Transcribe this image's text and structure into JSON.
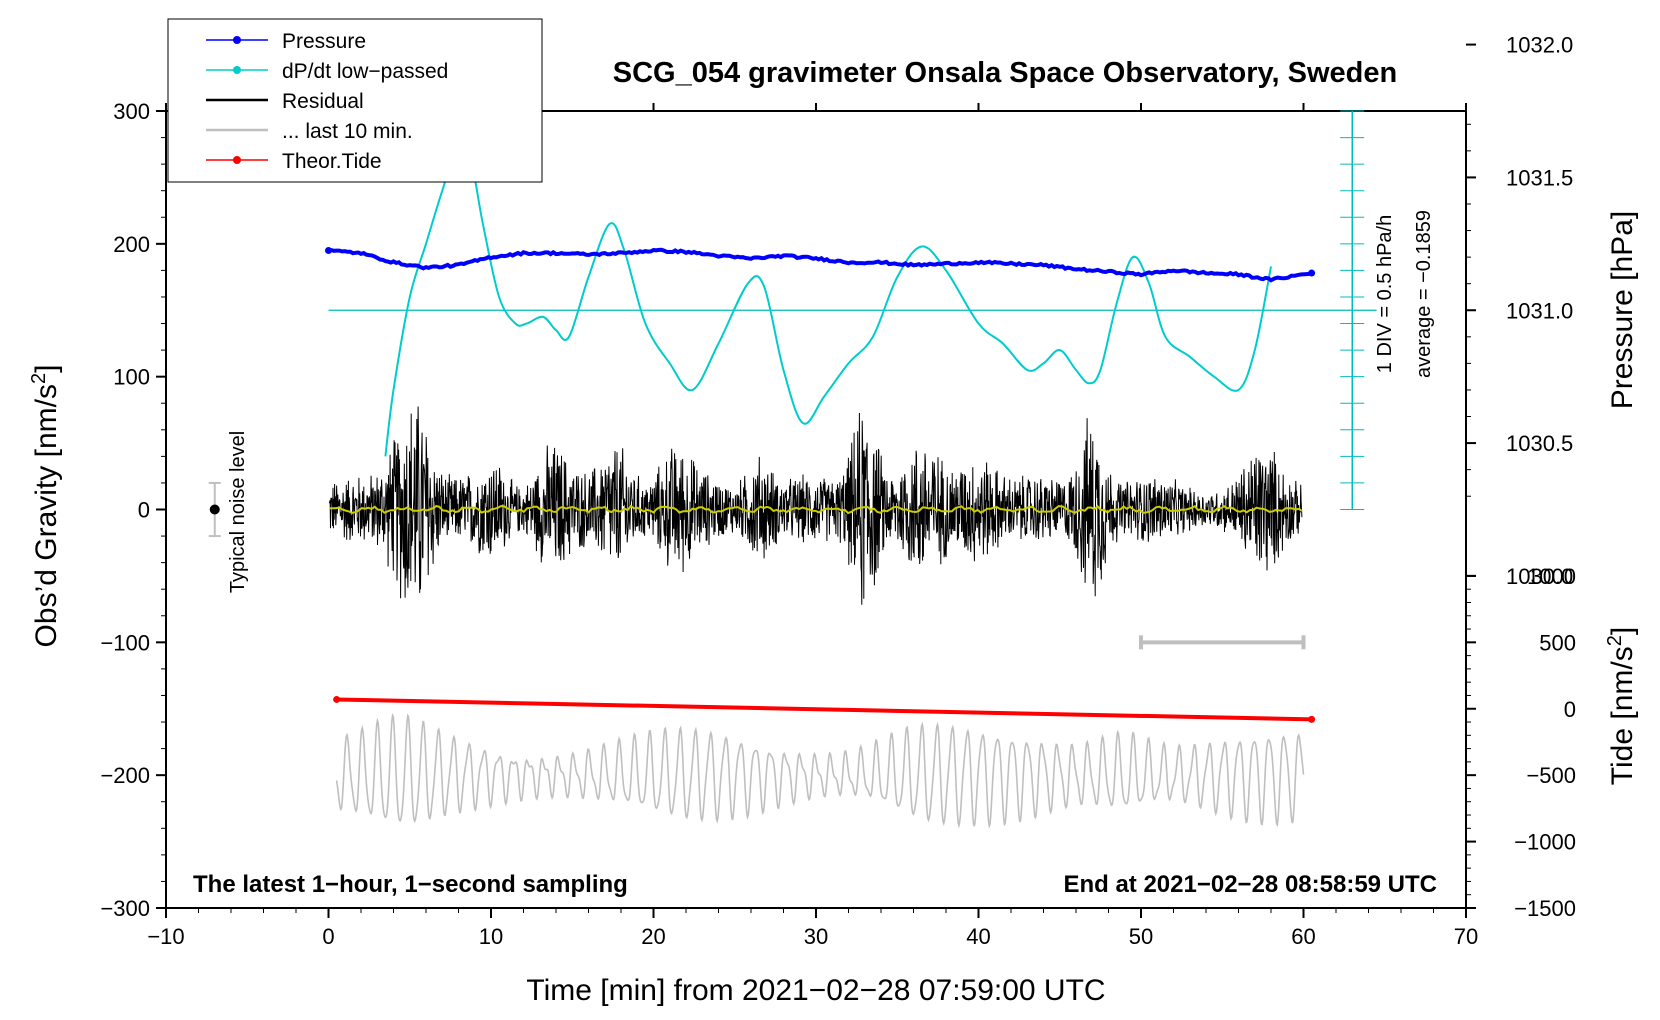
{
  "chart_data": {
    "type": "line",
    "title": "SCG_054 gravimeter Onsala Space Observatory, Sweden",
    "xlabel": "Time [min] from 2021−02−28 07:59:00 UTC",
    "ylabel_left": "Obs’d Gravity [nm/s",
    "ylabel_left_sup": "2",
    "ylabel_left_close": "]",
    "ylabel_right_pressure": "Pressure [hPa]",
    "ylabel_right_tide": "Tide [nm/s",
    "ylabel_right_tide_sup": "2",
    "ylabel_right_tide_close": "]",
    "xlim": [
      -10,
      70
    ],
    "ylim": [
      -300,
      300
    ],
    "x_ticks": [
      "−10",
      "0",
      "10",
      "20",
      "30",
      "40",
      "50",
      "60",
      "70"
    ],
    "x_tick_values": [
      -10,
      0,
      10,
      20,
      30,
      40,
      50,
      60,
      70
    ],
    "y_ticks": [
      "300",
      "200",
      "100",
      "0",
      "−100",
      "−200",
      "−300"
    ],
    "y_tick_values": [
      300,
      200,
      100,
      0,
      -100,
      -200,
      -300
    ],
    "pressure_ticks": [
      "1032.0",
      "1031.5",
      "1031.0",
      "1030.5",
      "1030.0"
    ],
    "pressure_tick_values": [
      1032.0,
      1031.5,
      1031.0,
      1030.5,
      1030.0
    ],
    "pressure_mapping": {
      "hpa_at_gravity_150": 1031.0,
      "gravity_per_hpa": 200
    },
    "tide_ticks": [
      "1000",
      "500",
      "0",
      "−500",
      "−1000",
      "−1500"
    ],
    "tide_tick_values": [
      1000,
      500,
      0,
      -500,
      -1000,
      -1500
    ],
    "tide_mapping": {
      "tide_at_gravity_minus150": 0,
      "gravity_per_tide_unit": 0.1
    },
    "annotation_left": "The latest 1−hour, 1−second sampling",
    "annotation_right": "End at 2021−02−28 08:58:59 UTC",
    "noise_label": "Typical noise level",
    "noise_bar": {
      "x": -7,
      "center": 0,
      "halfwidth": 20
    },
    "dpdt_scale_label": "1 DIV = 0.5 hPa/h",
    "dpdt_average_label": "average = −0.1859",
    "dpdt_axis": {
      "x": 63,
      "ymin": 0,
      "ymax": 300,
      "baseline": 150,
      "divisions": 15
    },
    "gray_range_bar": {
      "x_start": 50,
      "x_end": 60,
      "y": -100
    },
    "legend": [
      {
        "label": "Pressure",
        "color": "#0000ff",
        "marker": true
      },
      {
        "label": "dP/dt low−passed",
        "color": "#00cccc",
        "marker": true
      },
      {
        "label": "Residual",
        "color": "#000000",
        "marker": false
      },
      {
        "label": "... last 10 min.",
        "color": "#bfbfbf",
        "marker": false
      },
      {
        "label": "Theor.Tide",
        "color": "#ff0000",
        "marker": true
      }
    ],
    "series": [
      {
        "name": "Pressure",
        "color": "#0000ff",
        "x": [
          0,
          2,
          4,
          6,
          8,
          10,
          12,
          14,
          16,
          18,
          20,
          22,
          24,
          26,
          28,
          30,
          32,
          34,
          36,
          38,
          40,
          42,
          44,
          46,
          48,
          50,
          52,
          54,
          56,
          58,
          60.5
        ],
        "values": [
          195,
          193,
          186,
          182,
          184,
          190,
          193,
          193,
          192,
          193,
          195,
          194,
          191,
          189,
          191,
          189,
          186,
          186,
          184,
          185,
          186,
          185,
          184,
          181,
          179,
          177,
          180,
          178,
          177,
          173,
          178
        ]
      },
      {
        "name": "dP/dt low-passed",
        "color": "#00cccc",
        "x": [
          3.5,
          4,
          5,
          6,
          7,
          8,
          8.8,
          9.5,
          10.5,
          11.5,
          12.2,
          13.2,
          14,
          14.8,
          16,
          17.3,
          18.2,
          19.5,
          21,
          22.4,
          24,
          25.8,
          26.8,
          28,
          29.2,
          30.5,
          32,
          33.5,
          35,
          36.5,
          38,
          40,
          41.5,
          43,
          44,
          45,
          46,
          46.8,
          47.5,
          48.5,
          49.5,
          50.5,
          51.5,
          53,
          54.5,
          56,
          57,
          58
        ],
        "values": [
          40,
          90,
          160,
          200,
          240,
          275,
          260,
          215,
          160,
          140,
          140,
          145,
          135,
          130,
          175,
          215,
          195,
          140,
          110,
          90,
          125,
          170,
          168,
          105,
          65,
          85,
          110,
          130,
          175,
          198,
          180,
          140,
          125,
          105,
          110,
          120,
          105,
          95,
          105,
          155,
          190,
          170,
          130,
          115,
          100,
          90,
          120,
          183
        ]
      },
      {
        "name": "Theor.Tide",
        "color": "#ff0000",
        "x": [
          0.5,
          60.5
        ],
        "values": [
          -143,
          -158
        ]
      }
    ]
  }
}
